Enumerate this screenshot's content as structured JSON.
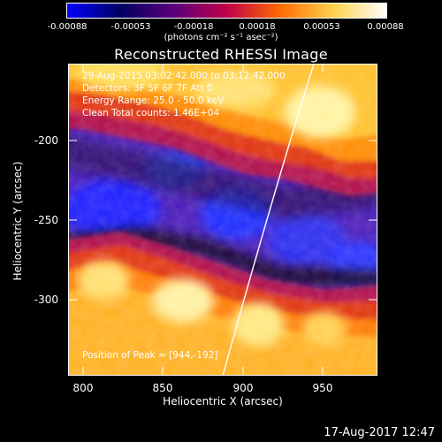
{
  "colorbar": {
    "ticks": [
      "-0.00088",
      "-0.00053",
      "-0.00018",
      "0.00018",
      "0.00053",
      "0.00088"
    ],
    "unit_label": "(photons cm⁻² s⁻¹ asec⁻²)",
    "colors": [
      "#0000ff",
      "#000060",
      "#5a007a",
      "#c0004a",
      "#ff6a00",
      "#ffd24d",
      "#ffffff"
    ]
  },
  "title": "Reconstructed RHESSI Image",
  "info": {
    "line1": "29-Aug-2015 03:02:42.000 to 03:12:42.000",
    "line2": "Detectors: 3F 5F 6F 7F  Att 0",
    "line3": "Energy Range: 25.0 - 50.0 keV",
    "line4": "Clean     Total counts: 1.46E+04",
    "peak": "Position of Peak = [944,-192]"
  },
  "axes": {
    "x_label": "Heliocentric X (arcsec)",
    "y_label": "Heliocentric Y (arcsec)",
    "x_ticks": [
      "800",
      "850",
      "900",
      "950"
    ],
    "y_ticks": [
      "-200",
      "-250",
      "-300"
    ],
    "x_range": [
      789,
      983
    ],
    "y_range": [
      -348,
      -152
    ]
  },
  "footer_date": "17-Aug-2017 12:47"
}
